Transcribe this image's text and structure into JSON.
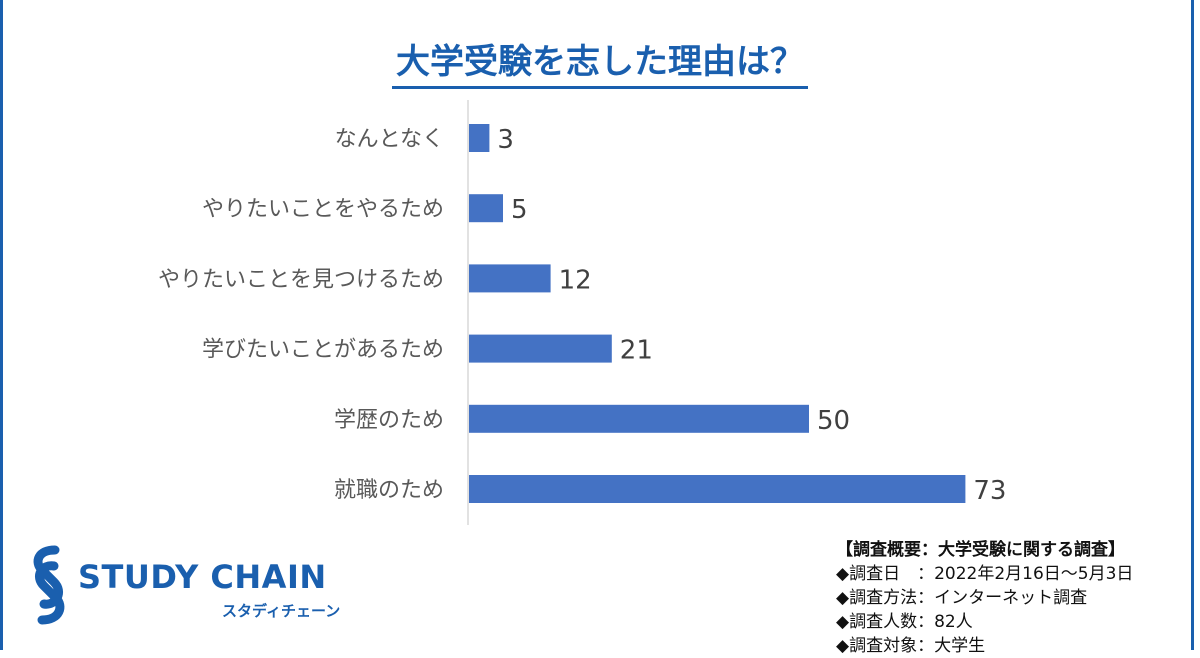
{
  "title": "大学受験を志した理由は？",
  "chart_data": {
    "type": "bar",
    "orientation": "horizontal",
    "categories": [
      "なんとなく",
      "やりたいことをやるため",
      "やりたいことを見つけるため",
      "学びたいことがあるため",
      "学歴のため",
      "就職のため"
    ],
    "values": [
      3,
      5,
      12,
      21,
      50,
      73
    ],
    "color": "#4472c4",
    "title": "大学受験を志した理由は？",
    "xlabel": "",
    "ylabel": "",
    "xlim": [
      0,
      80
    ],
    "grid": false,
    "data_labels": true
  },
  "logo": {
    "name": "STUDY CHAIN",
    "sub": "スタディチェーン",
    "color": "#1a5fae"
  },
  "survey": {
    "heading": "【調査概要：大学受験に関する調査】",
    "rows": [
      "◆調査日　：2022年2月16日～5月3日",
      "◆調査方法：インターネット調査",
      "◆調査人数：82人",
      "◆調査対象：大学生"
    ]
  },
  "colors": {
    "accent": "#1a5fae",
    "bar": "#4472c4"
  }
}
